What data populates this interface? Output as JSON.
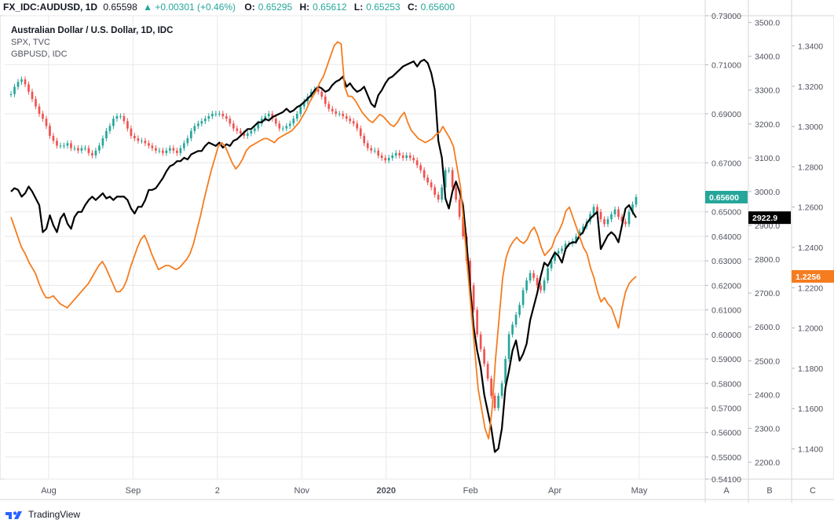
{
  "header": {
    "symbol": "FX_IDC:AUDUSD, 1D",
    "last": "0.65598",
    "change": "+0.00301 (+0.46%)",
    "open_label": "O:",
    "open": "0.65295",
    "high_label": "H:",
    "high": "0.65612",
    "low_label": "L:",
    "low": "0.65253",
    "close_label": "C:",
    "close": "0.65600"
  },
  "legend": {
    "main": "Australian Dollar / U.S. Dollar, 1D, IDC",
    "series2": "SPX, TVC",
    "series3": "GBPUSD, IDC"
  },
  "footer": {
    "brand": "TradingView"
  },
  "colors": {
    "up": "#26a69a",
    "down": "#ef5350",
    "spx": "#000000",
    "gbp": "#f57c1f",
    "grid": "#e8e8e8",
    "axis_text": "#50535e"
  },
  "chart_data": {
    "type": "line",
    "x_ticks": [
      "Aug",
      "Sep",
      "2",
      "Nov",
      "2020",
      "Feb",
      "Apr",
      "May"
    ],
    "scale_labels": [
      "A",
      "B",
      "C"
    ],
    "axis_a": {
      "ticks": [
        "0.73000",
        "0.71000",
        "0.69000",
        "0.67000",
        "0.65000",
        "0.64000",
        "0.63000",
        "0.62000",
        "0.61000",
        "0.60000",
        "0.59000",
        "0.58000",
        "0.57000",
        "0.56000",
        "0.55000",
        "0.54100"
      ],
      "ylim": [
        0.541,
        0.73
      ],
      "last_label": "0.65600"
    },
    "axis_b": {
      "ticks": [
        "3500.0",
        "3400.0",
        "3300.0",
        "3200.0",
        "3100.0",
        "3000.0",
        "2900.0",
        "2800.0",
        "2700.0",
        "2600.0",
        "2500.0",
        "2400.0",
        "2300.0",
        "2200.0"
      ],
      "ylim": [
        2150,
        3520
      ],
      "last_label": "2922.9"
    },
    "axis_c": {
      "ticks": [
        "1.3400",
        "1.3200",
        "1.3000",
        "1.2800",
        "1.2600",
        "1.2400",
        "1.2200",
        "1.2000",
        "1.1800",
        "1.1600",
        "1.1400"
      ],
      "ylim": [
        1.125,
        1.355
      ],
      "last_label": "1.2256"
    },
    "series": [
      {
        "name": "Australian Dollar / U.S. Dollar",
        "axis": "A",
        "style": "candles",
        "values": [
          0.698,
          0.701,
          0.703,
          0.704,
          0.702,
          0.699,
          0.696,
          0.693,
          0.69,
          0.688,
          0.685,
          0.681,
          0.679,
          0.677,
          0.677,
          0.677,
          0.678,
          0.676,
          0.676,
          0.675,
          0.676,
          0.676,
          0.674,
          0.673,
          0.675,
          0.677,
          0.68,
          0.683,
          0.685,
          0.688,
          0.689,
          0.689,
          0.687,
          0.684,
          0.681,
          0.68,
          0.679,
          0.679,
          0.678,
          0.677,
          0.676,
          0.675,
          0.675,
          0.674,
          0.675,
          0.676,
          0.675,
          0.674,
          0.676,
          0.678,
          0.68,
          0.683,
          0.685,
          0.686,
          0.687,
          0.688,
          0.689,
          0.69,
          0.69,
          0.69,
          0.689,
          0.688,
          0.686,
          0.684,
          0.683,
          0.682,
          0.681,
          0.682,
          0.683,
          0.684,
          0.686,
          0.688,
          0.689,
          0.69,
          0.688,
          0.686,
          0.684,
          0.684,
          0.685,
          0.686,
          0.688,
          0.69,
          0.693,
          0.695,
          0.697,
          0.699,
          0.7,
          0.699,
          0.697,
          0.694,
          0.692,
          0.691,
          0.69,
          0.69,
          0.689,
          0.688,
          0.687,
          0.686,
          0.684,
          0.681,
          0.678,
          0.676,
          0.675,
          0.675,
          0.673,
          0.672,
          0.671,
          0.672,
          0.673,
          0.674,
          0.673,
          0.672,
          0.673,
          0.672,
          0.671,
          0.669,
          0.667,
          0.664,
          0.662,
          0.66,
          0.657,
          0.655,
          0.66,
          0.667,
          0.667,
          0.66,
          0.655,
          0.648,
          0.64,
          0.63,
          0.62,
          0.61,
          0.6,
          0.594,
          0.588,
          0.582,
          0.575,
          0.57,
          0.575,
          0.58,
          0.59,
          0.6,
          0.604,
          0.608,
          0.612,
          0.618,
          0.622,
          0.625,
          0.623,
          0.62,
          0.618,
          0.622,
          0.627,
          0.63,
          0.633,
          0.634,
          0.635,
          0.637,
          0.637,
          0.638,
          0.64,
          0.642,
          0.644,
          0.646,
          0.649,
          0.652,
          0.65,
          0.647,
          0.645,
          0.647,
          0.649,
          0.651,
          0.648,
          0.646,
          0.645,
          0.65,
          0.653,
          0.656
        ]
      },
      {
        "name": "SPX",
        "axis": "B",
        "style": "line",
        "values": [
          3000,
          3010,
          3005,
          2985,
          2995,
          3015,
          3000,
          2980,
          2960,
          2880,
          2890,
          2930,
          2900,
          2880,
          2920,
          2935,
          2905,
          2890,
          2925,
          2940,
          2940,
          2960,
          2975,
          2985,
          2975,
          2985,
          2995,
          2980,
          2985,
          2975,
          2985,
          2985,
          2985,
          2975,
          2950,
          2935,
          2955,
          2955,
          2975,
          3005,
          3005,
          3010,
          3025,
          3040,
          3060,
          3075,
          3080,
          3090,
          3090,
          3100,
          3095,
          3110,
          3115,
          3120,
          3120,
          3135,
          3145,
          3140,
          3135,
          3145,
          3130,
          3140,
          3135,
          3150,
          3155,
          3165,
          3175,
          3185,
          3185,
          3195,
          3205,
          3205,
          3215,
          3210,
          3220,
          3225,
          3230,
          3235,
          3245,
          3235,
          3240,
          3250,
          3255,
          3265,
          3275,
          3285,
          3300,
          3310,
          3305,
          3295,
          3300,
          3315,
          3325,
          3330,
          3340,
          3310,
          3320,
          3305,
          3295,
          3300,
          3310,
          3285,
          3260,
          3250,
          3285,
          3300,
          3320,
          3335,
          3340,
          3350,
          3360,
          3370,
          3375,
          3380,
          3385,
          3370,
          3385,
          3390,
          3380,
          3350,
          3300,
          3150,
          3100,
          2980,
          2950,
          3000,
          3030,
          3000,
          2960,
          2850,
          2720,
          2600,
          2530,
          2480,
          2400,
          2350,
          2300,
          2230,
          2240,
          2300,
          2420,
          2470,
          2530,
          2560,
          2500,
          2520,
          2550,
          2620,
          2660,
          2700,
          2750,
          2790,
          2780,
          2800,
          2820,
          2810,
          2790,
          2830,
          2845,
          2850,
          2850,
          2870,
          2880,
          2905,
          2920,
          2930,
          2940,
          2830,
          2850,
          2870,
          2880,
          2870,
          2850,
          2900,
          2950,
          2960,
          2940,
          2922.9
        ]
      },
      {
        "name": "GBPUSD",
        "axis": "C",
        "style": "line",
        "values": [
          1.255,
          1.25,
          1.245,
          1.24,
          1.237,
          1.233,
          1.23,
          1.227,
          1.222,
          1.218,
          1.215,
          1.215,
          1.216,
          1.214,
          1.212,
          1.211,
          1.21,
          1.212,
          1.214,
          1.216,
          1.218,
          1.22,
          1.222,
          1.225,
          1.228,
          1.231,
          1.233,
          1.23,
          1.226,
          1.222,
          1.218,
          1.218,
          1.22,
          1.224,
          1.23,
          1.235,
          1.24,
          1.244,
          1.246,
          1.242,
          1.237,
          1.233,
          1.229,
          1.23,
          1.231,
          1.231,
          1.23,
          1.229,
          1.23,
          1.232,
          1.234,
          1.237,
          1.242,
          1.249,
          1.256,
          1.264,
          1.271,
          1.278,
          1.284,
          1.29,
          1.292,
          1.29,
          1.286,
          1.282,
          1.279,
          1.281,
          1.284,
          1.288,
          1.29,
          1.291,
          1.292,
          1.293,
          1.294,
          1.294,
          1.293,
          1.292,
          1.294,
          1.295,
          1.296,
          1.297,
          1.298,
          1.3,
          1.302,
          1.305,
          1.308,
          1.312,
          1.315,
          1.318,
          1.322,
          1.325,
          1.33,
          1.335,
          1.34,
          1.342,
          1.341,
          1.32,
          1.315,
          1.315,
          1.313,
          1.31,
          1.307,
          1.305,
          1.303,
          1.302,
          1.304,
          1.306,
          1.305,
          1.303,
          1.301,
          1.3,
          1.302,
          1.305,
          1.307,
          1.302,
          1.298,
          1.296,
          1.294,
          1.293,
          1.292,
          1.293,
          1.294,
          1.296,
          1.297,
          1.3,
          1.297,
          1.294,
          1.29,
          1.28,
          1.27,
          1.25,
          1.23,
          1.21,
          1.19,
          1.17,
          1.16,
          1.15,
          1.145,
          1.16,
          1.185,
          1.205,
          1.225,
          1.235,
          1.24,
          1.243,
          1.245,
          1.243,
          1.242,
          1.244,
          1.248,
          1.25,
          1.246,
          1.24,
          1.236,
          1.238,
          1.24,
          1.245,
          1.248,
          1.252,
          1.258,
          1.26,
          1.255,
          1.25,
          1.245,
          1.24,
          1.237,
          1.23,
          1.225,
          1.218,
          1.213,
          1.215,
          1.212,
          1.21,
          1.205,
          1.2,
          1.21,
          1.218,
          1.222,
          1.224,
          1.2256
        ]
      }
    ],
    "grid": true,
    "legend": "top-left"
  }
}
